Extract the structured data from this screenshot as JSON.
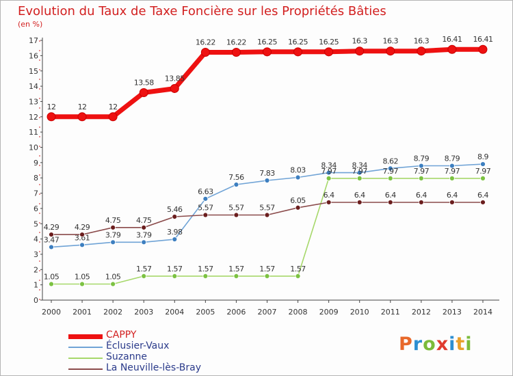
{
  "header": {
    "title": "Evolution du Taux de Taxe Foncière sur les Propriétés Bâties",
    "unit": "(en %)"
  },
  "logo": {
    "letters": [
      "P",
      "r",
      "o",
      "x",
      "i",
      "t",
      "i"
    ],
    "colors": [
      "#e8682a",
      "#2d8fd1",
      "#7bbb3a",
      "#e03b2f",
      "#2d8fd1",
      "#e8a02a",
      "#7bbb3a"
    ]
  },
  "chart_data": {
    "type": "line",
    "title": "Evolution du Taux de Taxe Foncière sur les Propriétés Bâties",
    "ylabel": "(en %)",
    "xlabel": "",
    "x": [
      "2000",
      "2001",
      "2002",
      "2003",
      "2004",
      "2005",
      "2006",
      "2007",
      "2008",
      "2009",
      "2010",
      "2011",
      "2012",
      "2013",
      "2014"
    ],
    "ylim": [
      0,
      17
    ],
    "yticks": [
      0,
      1,
      2,
      3,
      4,
      5,
      6,
      7,
      8,
      9,
      10,
      11,
      12,
      13,
      14,
      15,
      16,
      17
    ],
    "grid": false,
    "legend_position": "bottom-left",
    "series": [
      {
        "name": "CAPPY",
        "color": "#ee1111",
        "emphasis": true,
        "values": [
          12,
          12,
          12,
          13.58,
          13.85,
          16.22,
          16.22,
          16.25,
          16.25,
          16.25,
          16.3,
          16.3,
          16.3,
          16.41,
          16.41
        ],
        "labels": [
          "12",
          "12",
          "12",
          "13.58",
          "13.85",
          "16.22",
          "16.22",
          "16.25",
          "16.25",
          "16.25",
          "16.3",
          "16.3",
          "16.3",
          "16.41",
          "16.41"
        ]
      },
      {
        "name": "Éclusier-Vaux",
        "color": "#6fa3d6",
        "marker": "#3d7fc0",
        "values": [
          3.47,
          3.61,
          3.79,
          3.79,
          3.98,
          6.63,
          7.56,
          7.83,
          8.03,
          8.34,
          8.34,
          8.62,
          8.79,
          8.79,
          8.9
        ],
        "labels": [
          "3.47",
          "3.61",
          "3.79",
          "3.79",
          "3.98",
          "6.63",
          "7.56",
          "7.83",
          "8.03",
          "8.34",
          "8.34",
          "8.62",
          "8.79",
          "8.79",
          "8.9"
        ]
      },
      {
        "name": "Suzanne",
        "color": "#a6d86a",
        "marker": "#7cc242",
        "values": [
          1.05,
          1.05,
          1.05,
          1.57,
          1.57,
          1.57,
          1.57,
          1.57,
          1.57,
          7.97,
          7.97,
          7.97,
          7.97,
          7.97,
          7.97
        ],
        "labels": [
          "1.05",
          "1.05",
          "1.05",
          "1.57",
          "1.57",
          "1.57",
          "1.57",
          "1.57",
          "1.57",
          "7.97",
          "7.97",
          "7.97",
          "7.97",
          "7.97",
          "7.97"
        ]
      },
      {
        "name": "La Neuville-lès-Bray",
        "color": "#8a4a4a",
        "marker": "#6b1e1e",
        "values": [
          4.29,
          4.29,
          4.75,
          4.75,
          5.46,
          5.57,
          5.57,
          5.57,
          6.05,
          6.4,
          6.4,
          6.4,
          6.4,
          6.4,
          6.4
        ],
        "labels": [
          "4.29",
          "4.29",
          "4.75",
          "4.75",
          "5.46",
          "5.57",
          "5.57",
          "5.57",
          "6.05",
          "6.4",
          "6.4",
          "6.4",
          "6.4",
          "6.4",
          "6.4"
        ]
      }
    ]
  }
}
